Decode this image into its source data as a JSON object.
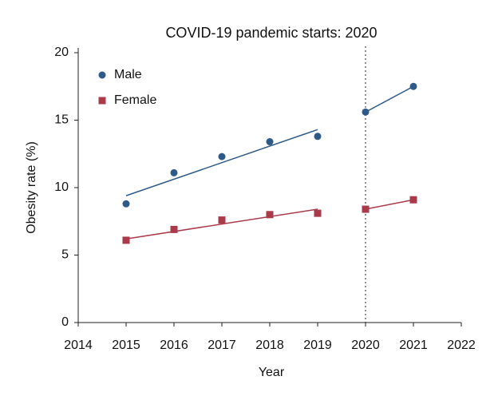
{
  "chart_data": {
    "type": "scatter",
    "title": "COVID-19 pandemic starts: 2020",
    "xlabel": "Year",
    "ylabel": "Obesity rate (%)",
    "x": [
      2015,
      2016,
      2017,
      2018,
      2019,
      2020,
      2021
    ],
    "series": [
      {
        "name": "Male",
        "color": "#2e5a87",
        "marker": "circle",
        "values": [
          8.8,
          11.1,
          12.3,
          13.4,
          13.8,
          15.6,
          17.5
        ],
        "trends": [
          {
            "x": [
              2015,
              2019
            ],
            "values": [
              9.4,
              14.3
            ]
          },
          {
            "x": [
              2020,
              2021
            ],
            "values": [
              15.6,
              17.5
            ]
          }
        ]
      },
      {
        "name": "Female",
        "color": "#a83a4a",
        "marker": "square",
        "values": [
          6.1,
          6.9,
          7.6,
          8.0,
          8.1,
          8.4,
          9.1
        ],
        "trends": [
          {
            "x": [
              2015,
              2019
            ],
            "values": [
              6.2,
              8.4
            ]
          },
          {
            "x": [
              2020,
              2021
            ],
            "values": [
              8.4,
              9.1
            ]
          }
        ]
      }
    ],
    "vline": 2020,
    "xlim": [
      2014,
      2022
    ],
    "xticks": [
      2014,
      2015,
      2016,
      2017,
      2018,
      2019,
      2020,
      2021,
      2022
    ],
    "ylim": [
      0,
      20
    ],
    "yticks": [
      0,
      5,
      10,
      15,
      20
    ],
    "grid": false,
    "legend": "upper left"
  }
}
